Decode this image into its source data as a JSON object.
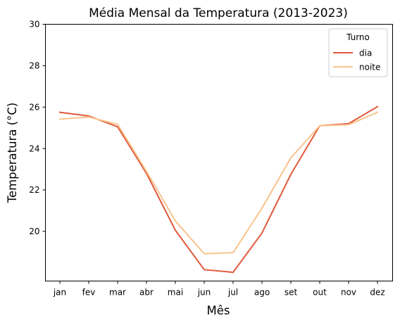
{
  "chart_data": {
    "type": "line",
    "title": "Média Mensal da Temperatura (2013-2023)",
    "xlabel": "Mês",
    "ylabel": "Temperatura (°C)",
    "categories": [
      "jan",
      "fev",
      "mar",
      "abr",
      "mai",
      "jun",
      "jul",
      "ago",
      "set",
      "out",
      "nov",
      "dez"
    ],
    "ylim": [
      17.6,
      30
    ],
    "yticks": [
      20,
      22,
      24,
      26,
      28,
      30
    ],
    "grid": false,
    "legend": {
      "title": "Turno",
      "position": "top-right"
    },
    "series": [
      {
        "name": "dia",
        "color": "#e05a3c",
        "values": [
          25.75,
          25.57,
          25.05,
          22.8,
          20.05,
          18.15,
          18.02,
          19.92,
          22.75,
          25.1,
          25.2,
          26.02
        ]
      },
      {
        "name": "noite",
        "color": "#f9c38d",
        "values": [
          25.42,
          25.52,
          25.17,
          22.9,
          20.5,
          18.92,
          18.97,
          21.12,
          23.55,
          25.1,
          25.15,
          25.75
        ]
      }
    ]
  }
}
